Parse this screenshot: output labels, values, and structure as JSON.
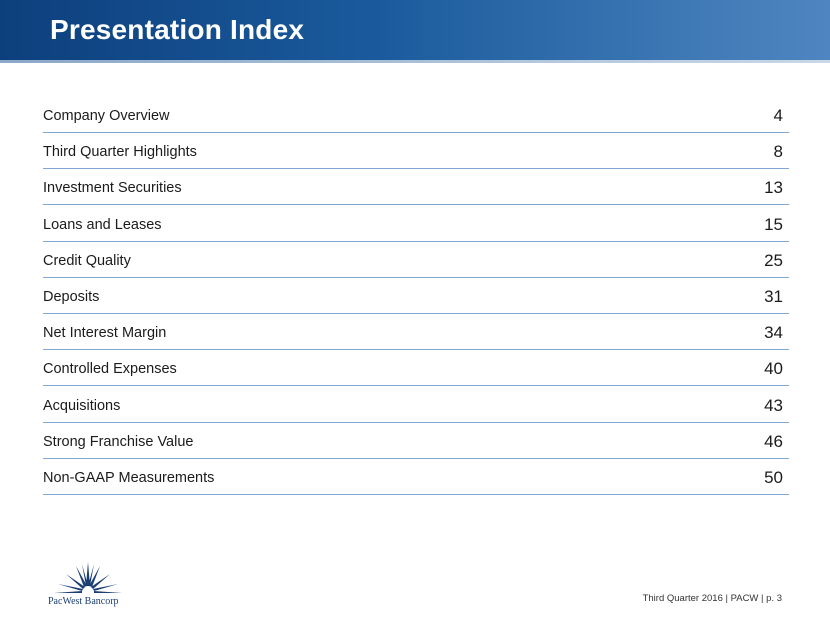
{
  "header": {
    "title": "Presentation Index"
  },
  "index": [
    {
      "label": "Company Overview",
      "page": "4"
    },
    {
      "label": "Third Quarter Highlights",
      "page": "8"
    },
    {
      "label": "Investment Securities",
      "page": "13"
    },
    {
      "label": "Loans and Leases",
      "page": "15"
    },
    {
      "label": "Credit Quality",
      "page": "25"
    },
    {
      "label": "Deposits",
      "page": "31"
    },
    {
      "label": "Net Interest Margin",
      "page": "34"
    },
    {
      "label": "Controlled Expenses",
      "page": "40"
    },
    {
      "label": "Acquisitions",
      "page": "43"
    },
    {
      "label": "Strong Franchise Value",
      "page": "46"
    },
    {
      "label": "Non-GAAP Measurements",
      "page": "50"
    }
  ],
  "logo": {
    "text": "PacWest Bancorp",
    "icon": "starburst-logo-icon"
  },
  "footer": {
    "text": "Third Quarter 2016 | PACW | p. 3"
  },
  "colors": {
    "header_dark": "#0d3f7d",
    "header_light": "#4f86c1",
    "rule": "#7ea6d6",
    "logo": "#1b3f73"
  }
}
